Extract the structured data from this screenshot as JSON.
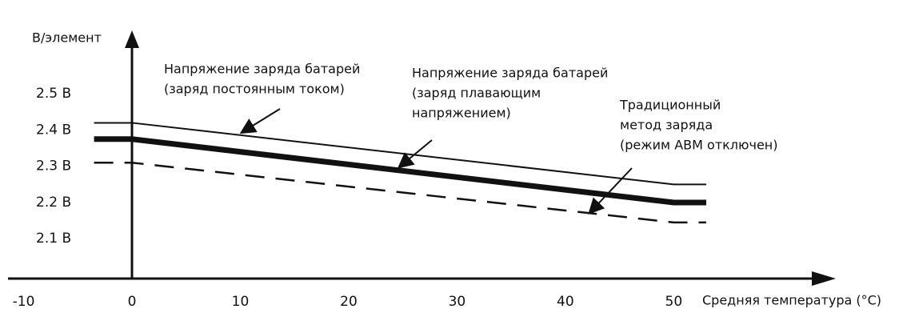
{
  "chart_data": {
    "type": "line",
    "y_label": "В/элемент",
    "x_label": "Средняя температура (°C)",
    "x": [
      -3.5,
      0,
      50,
      53
    ],
    "series": [
      {
        "color": "#111111",
        "style": "solid",
        "width": 2,
        "values": [
          2.42,
          2.42,
          2.25,
          2.25
        ]
      },
      {
        "color": "#111111",
        "style": "solid",
        "width": 7,
        "values": [
          2.375,
          2.375,
          2.2,
          2.2
        ]
      },
      {
        "color": "#111111",
        "style": "dashed",
        "width": 2.5,
        "values": [
          2.31,
          2.31,
          2.145,
          2.145
        ]
      }
    ],
    "annotations": [
      [
        "Напряжение заряда батарей",
        "(заряд постоянным током)"
      ],
      [
        "Напряжение заряда батарей",
        "(заряд плавающим",
        "напряжением)"
      ],
      [
        "Традиционный",
        "метод заряда",
        "(режим ABM отключен)"
      ]
    ],
    "xlim": [
      -11,
      64
    ],
    "ylim": [
      1.99,
      2.6
    ],
    "xticks": [
      -10,
      0,
      10,
      20,
      30,
      40,
      50
    ],
    "yticks": [
      {
        "value": 2.1,
        "label": "2.1 В"
      },
      {
        "value": 2.2,
        "label": "2.2 В"
      },
      {
        "value": 2.3,
        "label": "2.3 В"
      },
      {
        "value": 2.4,
        "label": "2.4 В"
      },
      {
        "value": 2.5,
        "label": "2.5 В"
      }
    ],
    "grid": false
  }
}
